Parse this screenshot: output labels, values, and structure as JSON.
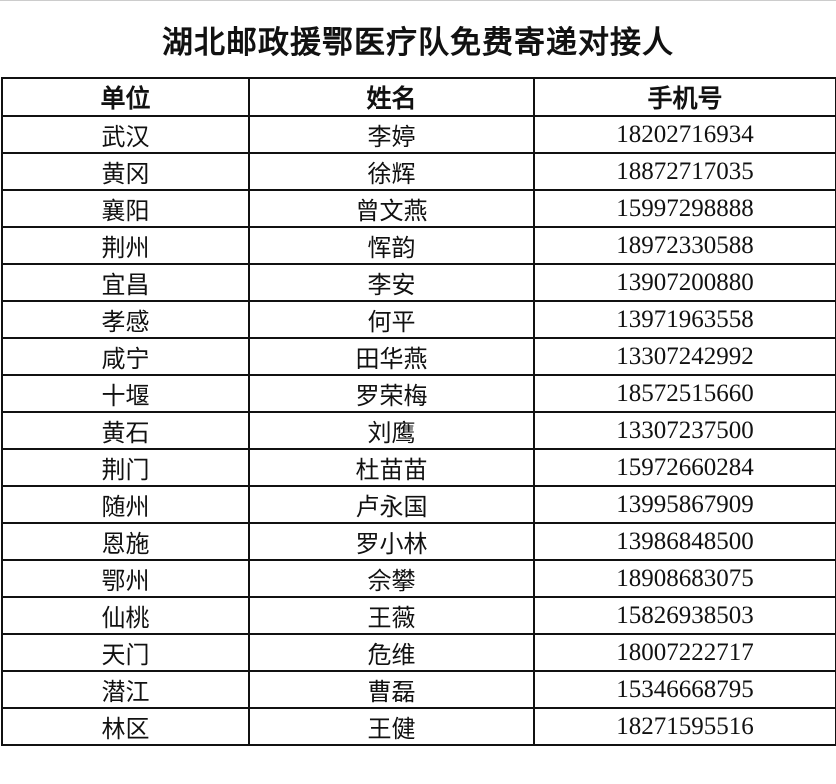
{
  "title": "湖北邮政援鄂医疗队免费寄递对接人",
  "headers": [
    "单位",
    "姓名",
    "手机号"
  ],
  "rows": [
    [
      "武汉",
      "李婷",
      "18202716934"
    ],
    [
      "黄冈",
      "徐辉",
      "18872717035"
    ],
    [
      "襄阳",
      "曾文燕",
      "15997298888"
    ],
    [
      "荆州",
      "恽韵",
      "18972330588"
    ],
    [
      "宜昌",
      "李安",
      "13907200880"
    ],
    [
      "孝感",
      "何平",
      "13971963558"
    ],
    [
      "咸宁",
      "田华燕",
      "13307242992"
    ],
    [
      "十堰",
      "罗荣梅",
      "18572515660"
    ],
    [
      "黄石",
      "刘鹰",
      "13307237500"
    ],
    [
      "荆门",
      "杜苗苗",
      "15972660284"
    ],
    [
      "随州",
      "卢永国",
      "13995867909"
    ],
    [
      "恩施",
      "罗小林",
      "13986848500"
    ],
    [
      "鄂州",
      "佘攀",
      "18908683075"
    ],
    [
      "仙桃",
      "王薇",
      "15826938503"
    ],
    [
      "天门",
      "危维",
      "18007222717"
    ],
    [
      "潜江",
      "曹磊",
      "15346668795"
    ],
    [
      "林区",
      "王健",
      "18271595516"
    ]
  ]
}
